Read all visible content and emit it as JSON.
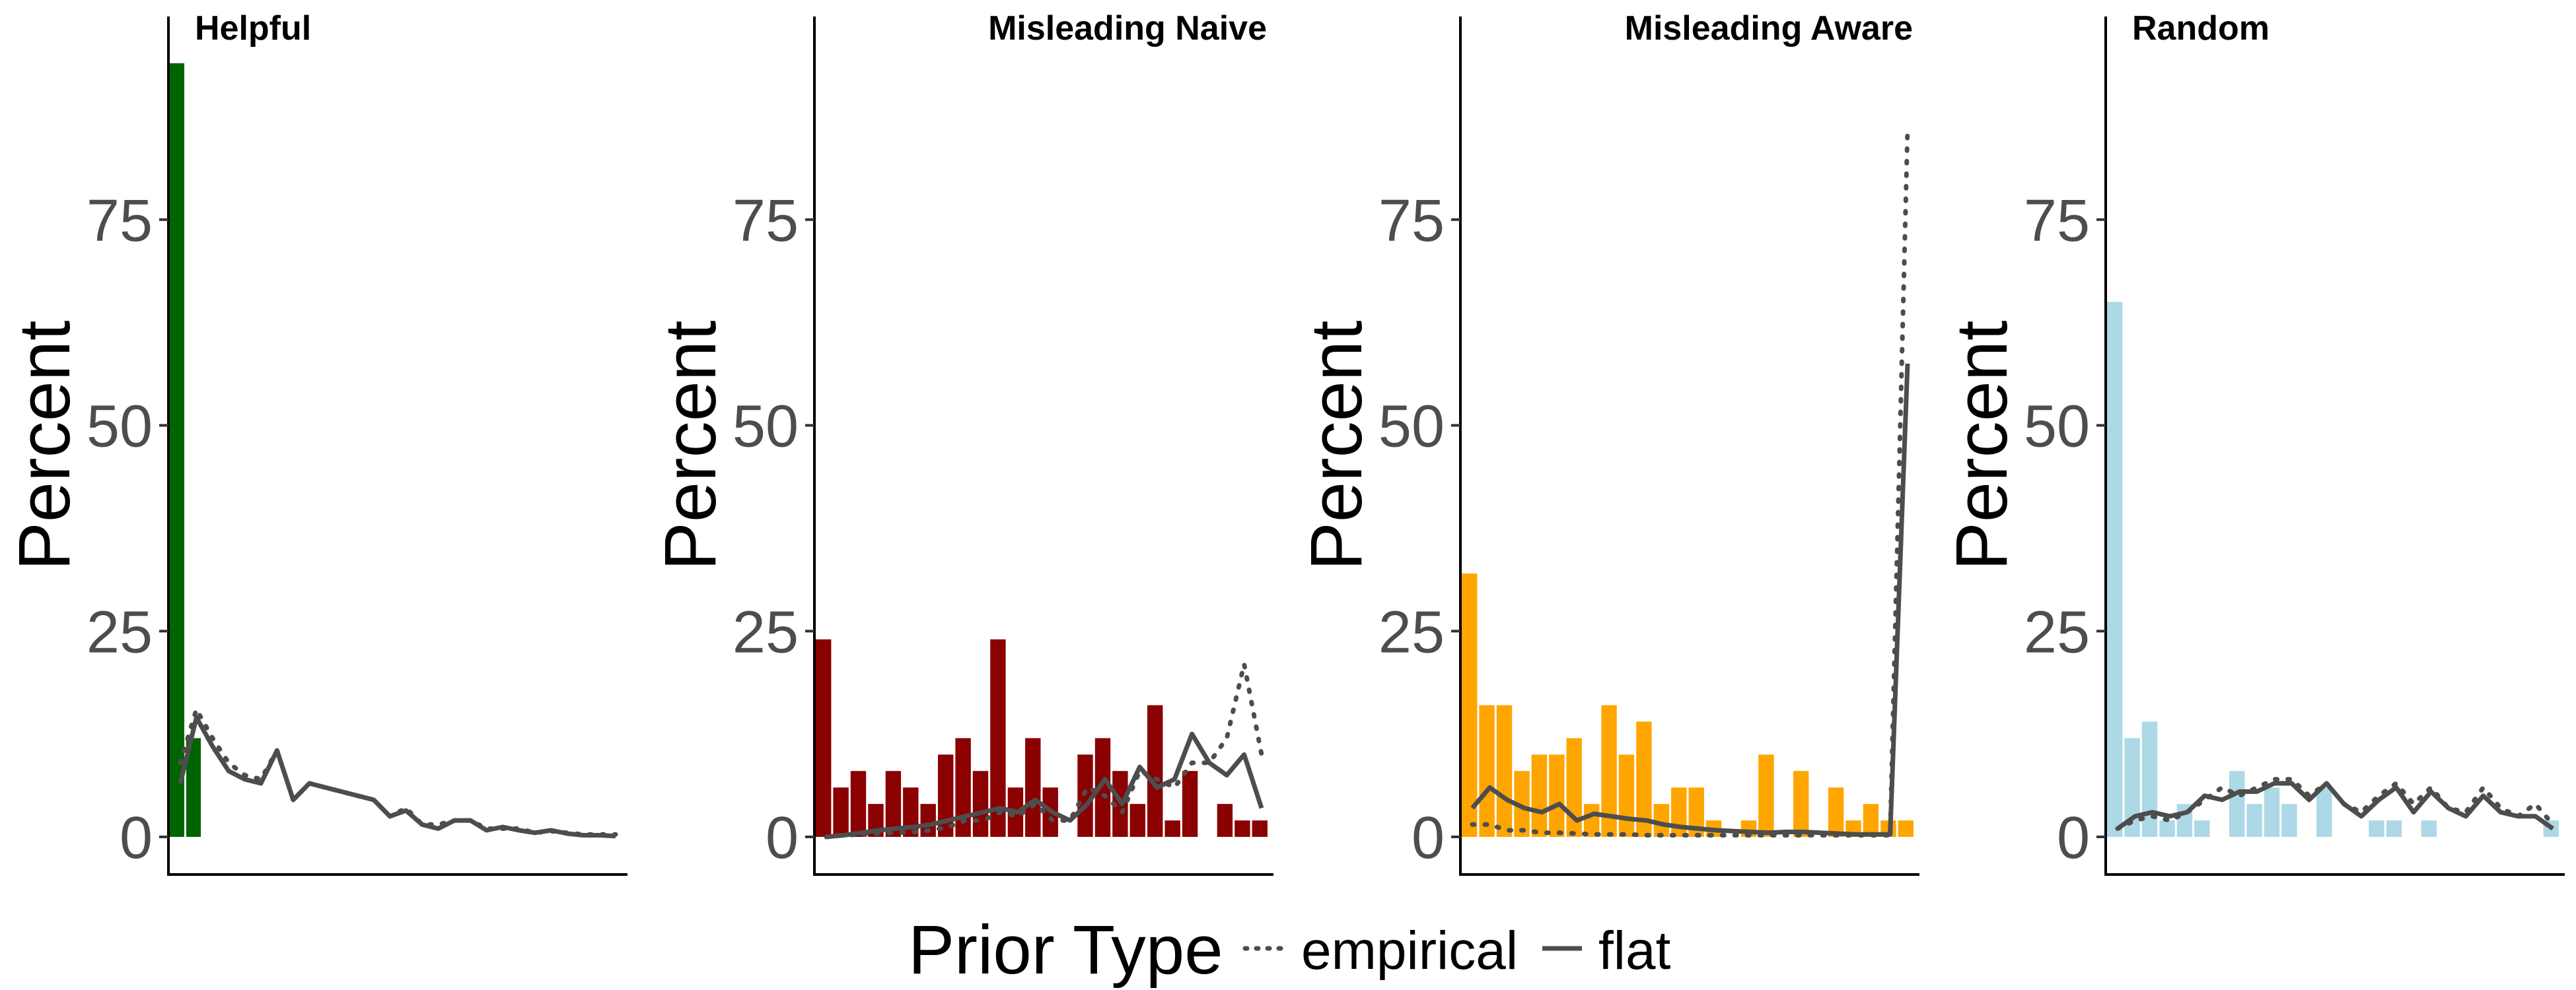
{
  "chart_data": [
    {
      "type": "bar",
      "title": "Helpful",
      "ylabel": "Percent",
      "ylim": [
        0,
        100
      ],
      "yticks": [
        0,
        25,
        50,
        75
      ],
      "color": "#006400",
      "bars": [
        94,
        12
      ],
      "series": [
        {
          "name": "empirical",
          "values": [
            9,
            15.5,
            12,
            9,
            7.5,
            7,
            10.5,
            4.5,
            6.5,
            6,
            5.5,
            5,
            4.5,
            2.5,
            3.5,
            1.5,
            1.5,
            2,
            2,
            1,
            1,
            1,
            0.5,
            0.7,
            0.5,
            0.3,
            0.3,
            0.3
          ]
        },
        {
          "name": "flat",
          "values": [
            6.5,
            14.5,
            11,
            8,
            7,
            6.5,
            10.5,
            4.5,
            6.5,
            6,
            5.5,
            5,
            4.5,
            2.5,
            3.2,
            1.5,
            1,
            2,
            2,
            0.8,
            1.2,
            0.8,
            0.5,
            0.8,
            0.4,
            0.2,
            0.2,
            0.1
          ]
        }
      ]
    },
    {
      "type": "bar",
      "title": "Misleading Naive",
      "ylabel": "Percent",
      "ylim": [
        0,
        100
      ],
      "yticks": [
        0,
        25,
        50,
        75
      ],
      "color": "#8b0000",
      "bars": [
        24,
        6,
        8,
        4,
        8,
        6,
        4,
        10,
        12,
        8,
        24,
        6,
        12,
        6,
        0,
        10,
        12,
        8,
        4,
        16,
        2,
        8,
        0,
        4,
        2,
        2
      ],
      "series": [
        {
          "name": "empirical",
          "values": [
            0,
            0.2,
            0.3,
            0.4,
            0.5,
            0.6,
            0.8,
            1.2,
            2,
            2,
            3,
            2.5,
            4,
            2,
            2,
            6,
            5,
            3,
            8,
            7,
            6,
            9,
            9,
            12,
            21,
            10
          ]
        },
        {
          "name": "flat",
          "values": [
            0,
            0.2,
            0.5,
            0.8,
            1,
            1.2,
            1.5,
            2,
            2.5,
            3,
            3.5,
            3,
            4.5,
            3,
            2,
            4,
            7,
            4,
            8.5,
            6,
            7,
            12.5,
            9,
            7.5,
            10,
            3.5
          ]
        }
      ]
    },
    {
      "type": "bar",
      "title": "Misleading Aware",
      "ylabel": "Percent",
      "ylim": [
        0,
        100
      ],
      "yticks": [
        0,
        25,
        50,
        75
      ],
      "color": "#ffa500",
      "bars": [
        32,
        16,
        16,
        8,
        10,
        10,
        12,
        4,
        16,
        10,
        14,
        4,
        6,
        6,
        2,
        0,
        2,
        10,
        0,
        8,
        0,
        6,
        2,
        4,
        2,
        2
      ],
      "series": [
        {
          "name": "empirical",
          "values": [
            1.5,
            1.5,
            0.8,
            0.8,
            0.5,
            0.5,
            0.4,
            0.3,
            0.3,
            0.3,
            0.2,
            0.2,
            0.2,
            0.2,
            0.2,
            0.2,
            0.2,
            0.2,
            0.2,
            0.2,
            0.2,
            0.2,
            0.2,
            0.2,
            0.2,
            86
          ]
        },
        {
          "name": "flat",
          "values": [
            3.5,
            6,
            4.5,
            3.5,
            3,
            4,
            2,
            2.8,
            2.5,
            2.2,
            2,
            1.5,
            1.2,
            1,
            0.8,
            0.7,
            0.6,
            0.5,
            0.6,
            0.6,
            0.5,
            0.4,
            0.3,
            0.3,
            0.3,
            57.5
          ]
        }
      ]
    },
    {
      "type": "bar",
      "title": "Random",
      "ylabel": "Percent",
      "ylim": [
        0,
        100
      ],
      "yticks": [
        0,
        25,
        50,
        75
      ],
      "color": "#add8e6",
      "bars": [
        65,
        12,
        14,
        2,
        4,
        2,
        0,
        8,
        4,
        6,
        4,
        0,
        6,
        0,
        0,
        2,
        2,
        0,
        2,
        0,
        0,
        0,
        0,
        0,
        0,
        2
      ],
      "series": [
        {
          "name": "empirical",
          "values": [
            1,
            2,
            2.5,
            2,
            3,
            4.5,
            6,
            5,
            6,
            7,
            7,
            5,
            6.5,
            4,
            3,
            5,
            6.5,
            4,
            6,
            3.5,
            3,
            6,
            3.5,
            2.5,
            4,
            1.5
          ]
        },
        {
          "name": "flat",
          "values": [
            1,
            2.5,
            3,
            2.5,
            3,
            5,
            4.5,
            5.5,
            5.5,
            6.5,
            6.5,
            4.5,
            6.5,
            4,
            2.5,
            4.5,
            6,
            3,
            5.5,
            3.5,
            2.5,
            5,
            3,
            2.5,
            2.5,
            1
          ]
        }
      ]
    }
  ],
  "legend": {
    "title": "Prior Type",
    "items": [
      {
        "label": "empirical",
        "linetype": "dotted"
      },
      {
        "label": "flat",
        "linetype": "solid"
      }
    ],
    "placement": "bottom"
  },
  "line_color": "#4d4d4d"
}
